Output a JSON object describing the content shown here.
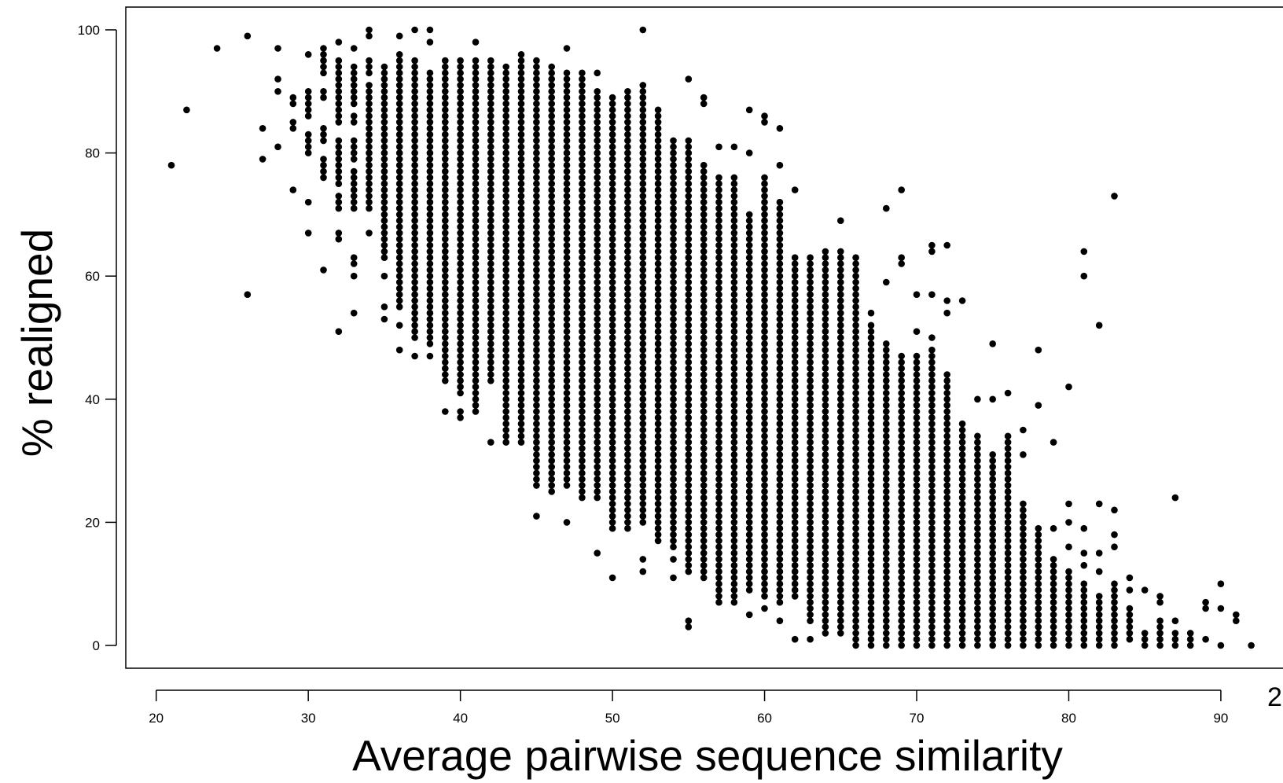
{
  "page_number": "2",
  "chart_data": {
    "type": "scatter",
    "title": "",
    "xlabel": "Average pairwise sequence similarity",
    "ylabel": "% realigned",
    "xlim": [
      18,
      94.5
    ],
    "ylim": [
      -3.7,
      103.7
    ],
    "xticks": [
      20,
      30,
      40,
      50,
      60,
      70,
      80,
      90
    ],
    "yticks": [
      0,
      20,
      40,
      60,
      80,
      100
    ],
    "grid": false,
    "legend": "none",
    "marker_color": "#000000",
    "columns": [
      {
        "x": 21,
        "y": [
          78
        ]
      },
      {
        "x": 22,
        "y": [
          87
        ]
      },
      {
        "x": 24,
        "y": [
          97
        ]
      },
      {
        "x": 26,
        "y": [
          99,
          57
        ]
      },
      {
        "x": 27,
        "y": [
          84,
          79
        ]
      },
      {
        "x": 28,
        "y": [
          97,
          92,
          90,
          81
        ]
      },
      {
        "x": 29,
        "y": [
          89,
          88,
          85,
          84,
          74
        ]
      },
      {
        "x": 30,
        "y": [
          96,
          90,
          89,
          88,
          87,
          86,
          83,
          82,
          81,
          80,
          72,
          67
        ]
      },
      {
        "x": 31,
        "y": [
          97,
          96,
          95,
          94,
          93,
          90,
          89,
          84,
          83,
          82,
          79,
          78,
          77,
          76,
          61
        ]
      },
      {
        "x": 32,
        "y": [
          98,
          95,
          94,
          93,
          92,
          91,
          90,
          89,
          88,
          87,
          86,
          85,
          82,
          81,
          80,
          79,
          78,
          77,
          76,
          75,
          73,
          72,
          71,
          67,
          66,
          51
        ]
      },
      {
        "x": 33,
        "y": [
          97,
          94,
          93,
          92,
          91,
          90,
          89,
          88,
          86,
          85,
          82,
          81,
          80,
          79,
          77,
          76,
          75,
          74,
          73,
          72,
          71,
          63,
          62,
          60,
          54
        ]
      },
      {
        "x": 34,
        "y": [
          100,
          99,
          95,
          94,
          93,
          91,
          90,
          89,
          88,
          87,
          86,
          85,
          84,
          83,
          82,
          81,
          80,
          79,
          78,
          77,
          76,
          75,
          74,
          73,
          72,
          71,
          67
        ]
      },
      {
        "x": "35",
        "y": [
          94,
          92,
          88,
          84,
          80,
          76,
          72,
          68,
          64,
          60,
          55,
          53
        ],
        "range": [
          63,
          94
        ]
      },
      {
        "x": "36",
        "y": [
          99,
          96,
          90,
          85,
          80,
          75,
          70,
          66,
          62,
          58,
          55,
          52,
          48
        ],
        "range": [
          56,
          96
        ]
      },
      {
        "x": "37",
        "y": [
          100,
          95,
          92,
          86,
          80,
          74,
          68,
          62,
          57,
          53,
          50,
          47
        ],
        "range": [
          50,
          95
        ]
      },
      {
        "x": "38",
        "y": [
          100,
          98,
          93,
          88,
          82,
          76,
          70,
          64,
          58,
          52,
          49,
          47
        ],
        "range": [
          49,
          93
        ]
      },
      {
        "x": "39",
        "y": [
          95,
          90,
          84,
          78,
          72,
          66,
          60,
          54,
          48,
          44,
          43,
          38
        ],
        "range": [
          43,
          95
        ]
      },
      {
        "x": "40",
        "y": [
          95,
          88,
          80,
          72,
          64,
          56,
          48,
          43,
          38,
          37
        ],
        "range": [
          41,
          95
        ]
      },
      {
        "x": "41",
        "y": [
          98,
          92,
          84,
          76,
          68,
          60,
          52,
          44,
          40,
          38
        ],
        "range": [
          38,
          95
        ]
      },
      {
        "x": "42",
        "y": [
          95,
          90,
          82,
          74,
          66,
          58,
          50,
          45,
          43,
          33
        ],
        "range": [
          43,
          94
        ]
      },
      {
        "x": "43",
        "y": [
          94,
          88,
          80,
          72,
          64,
          56,
          48,
          40,
          35,
          33
        ],
        "range": [
          33,
          94
        ]
      },
      {
        "x": "44",
        "y": [
          96,
          90,
          82,
          74,
          66,
          58,
          50,
          42,
          38,
          33
        ],
        "range": [
          33,
          96
        ]
      },
      {
        "x": "45",
        "y": [
          95,
          88,
          80,
          70,
          60,
          50,
          40,
          30,
          26,
          21
        ],
        "range": [
          26,
          95
        ]
      },
      {
        "x": "46",
        "y": [
          94,
          88,
          80,
          70,
          60,
          50,
          40,
          30,
          25
        ],
        "range": [
          25,
          94
        ]
      },
      {
        "x": "47",
        "y": [
          97,
          92,
          84,
          74,
          64,
          54,
          44,
          34,
          26,
          20
        ],
        "range": [
          26,
          93
        ]
      },
      {
        "x": "48",
        "y": [
          93,
          86,
          78,
          68,
          58,
          48,
          38,
          30,
          25,
          24
        ],
        "range": [
          24,
          93
        ]
      },
      {
        "x": "49",
        "y": [
          93,
          88,
          80,
          70,
          60,
          50,
          40,
          30,
          25,
          24,
          15
        ],
        "range": [
          24,
          90
        ]
      },
      {
        "x": "50",
        "y": [
          89,
          84,
          76,
          66,
          56,
          46,
          36,
          26,
          20,
          19,
          11
        ],
        "range": [
          19,
          89
        ]
      },
      {
        "x": "51",
        "y": [
          90,
          84,
          74,
          64,
          54,
          44,
          34,
          24,
          20,
          19
        ],
        "range": [
          19,
          90
        ]
      },
      {
        "x": "52",
        "y": [
          100,
          91,
          86,
          76,
          66,
          56,
          46,
          36,
          24,
          20,
          14,
          12
        ],
        "range": [
          20,
          91
        ]
      },
      {
        "x": "53",
        "y": [
          87,
          84,
          74,
          64,
          54,
          44,
          34,
          24,
          17
        ],
        "range": [
          17,
          87
        ]
      },
      {
        "x": "54",
        "y": [
          82,
          76,
          68,
          58,
          48,
          38,
          28,
          16,
          14,
          11
        ],
        "range": [
          16,
          82
        ]
      },
      {
        "x": "55",
        "y": [
          92,
          82,
          72,
          62,
          52,
          42,
          32,
          22,
          12,
          4,
          3
        ],
        "range": [
          12,
          82
        ]
      },
      {
        "x": "56",
        "y": [
          89,
          88,
          78,
          68,
          58,
          48,
          38,
          28,
          18,
          11
        ],
        "range": [
          11,
          78
        ]
      },
      {
        "x": "57",
        "y": [
          81,
          76,
          66,
          56,
          46,
          36,
          26,
          16,
          9,
          7
        ],
        "range": [
          7,
          76
        ]
      },
      {
        "x": "58",
        "y": [
          81,
          76,
          66,
          56,
          46,
          36,
          26,
          16,
          10,
          7
        ],
        "range": [
          7,
          76
        ]
      },
      {
        "x": "59",
        "y": [
          87,
          80,
          70,
          60,
          50,
          40,
          30,
          20,
          10,
          5
        ],
        "range": [
          9,
          70
        ]
      },
      {
        "x": "60",
        "y": [
          86,
          85,
          76,
          66,
          56,
          46,
          36,
          26,
          16,
          8,
          6
        ],
        "range": [
          8,
          76
        ]
      },
      {
        "x": "61",
        "y": [
          84,
          78,
          72,
          62,
          52,
          42,
          32,
          22,
          12,
          7,
          4
        ],
        "range": [
          7,
          72
        ]
      },
      {
        "x": "62",
        "y": [
          74,
          63,
          54,
          44,
          34,
          24,
          14,
          8,
          1
        ],
        "range": [
          8,
          63
        ]
      },
      {
        "x": "63",
        "y": [
          63,
          55,
          45,
          35,
          25,
          15,
          5,
          1
        ],
        "range": [
          4,
          63
        ]
      },
      {
        "x": "64",
        "y": [
          64,
          56,
          46,
          36,
          26,
          16,
          6,
          2
        ],
        "range": [
          2,
          64
        ]
      },
      {
        "x": "65",
        "y": [
          69,
          64,
          58,
          48,
          38,
          28,
          18,
          8,
          2
        ],
        "range": [
          2,
          64
        ]
      },
      {
        "x": "66",
        "y": [
          63,
          55,
          45,
          35,
          25,
          15,
          5,
          0
        ],
        "range": [
          0,
          63
        ]
      },
      {
        "x": "67",
        "y": [
          54,
          46,
          36,
          26,
          16,
          6,
          0
        ],
        "range": [
          0,
          52
        ]
      },
      {
        "x": "68",
        "y": [
          71,
          59,
          49,
          39,
          29,
          19,
          9,
          0
        ],
        "range": [
          0,
          49
        ]
      },
      {
        "x": "69",
        "y": [
          74,
          63,
          62,
          47,
          37,
          27,
          17,
          7,
          0
        ],
        "range": [
          0,
          47
        ]
      },
      {
        "x": "70",
        "y": [
          57,
          51,
          41,
          31,
          21,
          11,
          1,
          0
        ],
        "range": [
          0,
          47
        ]
      },
      {
        "x": "71",
        "y": [
          65,
          64,
          57,
          50,
          40,
          30,
          20,
          10,
          0
        ],
        "range": [
          0,
          48
        ]
      },
      {
        "x": "72",
        "y": [
          65,
          56,
          54,
          44,
          34,
          24,
          14,
          4,
          0
        ],
        "range": [
          0,
          44
        ]
      },
      {
        "x": "73",
        "y": [
          56,
          36,
          26,
          16,
          6,
          0
        ],
        "range": [
          0,
          36
        ]
      },
      {
        "x": "74",
        "y": [
          40,
          34,
          24,
          14,
          4,
          0
        ],
        "range": [
          0,
          34
        ]
      },
      {
        "x": "75",
        "y": [
          49,
          40,
          31,
          21,
          11,
          1,
          0
        ],
        "range": [
          0,
          31
        ]
      },
      {
        "x": "76",
        "y": [
          41,
          34,
          24,
          14,
          4,
          0
        ],
        "range": [
          0,
          34
        ]
      },
      {
        "x": "77",
        "y": [
          35,
          31,
          23,
          13,
          3,
          0
        ],
        "range": [
          0,
          23
        ]
      },
      {
        "x": "78",
        "y": [
          48,
          39,
          19,
          9,
          0
        ],
        "range": [
          0,
          19
        ]
      },
      {
        "x": "79",
        "y": [
          33,
          19,
          14,
          4,
          0
        ],
        "range": [
          0,
          14
        ]
      },
      {
        "x": "80",
        "y": [
          42,
          23,
          20,
          16,
          12,
          6,
          0
        ],
        "range": [
          0,
          12
        ]
      },
      {
        "x": "81",
        "y": [
          64,
          60,
          19,
          15,
          13,
          8,
          2,
          0
        ],
        "range": [
          0,
          10
        ]
      },
      {
        "x": "82",
        "y": [
          52,
          23,
          15,
          12,
          8,
          4,
          0
        ],
        "range": [
          0,
          8
        ]
      },
      {
        "x": "83",
        "y": [
          73,
          22,
          18,
          16,
          10,
          8,
          4,
          0
        ],
        "range": [
          0,
          10
        ]
      },
      {
        "x": "84",
        "y": [
          11,
          9,
          6,
          2,
          1
        ],
        "range": [
          1,
          6
        ]
      },
      {
        "x": "85",
        "y": [
          9,
          2,
          1,
          0
        ],
        "range": [
          0,
          2
        ]
      },
      {
        "x": "86",
        "y": [
          8,
          7,
          4,
          1,
          0
        ],
        "range": [
          0,
          4
        ]
      },
      {
        "x": "87",
        "y": [
          24,
          4,
          2,
          0
        ],
        "range": [
          0,
          2
        ]
      },
      {
        "x": "88",
        "y": [
          2,
          1,
          0
        ]
      },
      {
        "x": "89",
        "y": [
          7,
          6,
          1
        ]
      },
      {
        "x": "90",
        "y": [
          10,
          6,
          0
        ]
      },
      {
        "x": "91",
        "y": [
          5,
          4
        ]
      },
      {
        "x": "92",
        "y": [
          0
        ]
      }
    ]
  }
}
